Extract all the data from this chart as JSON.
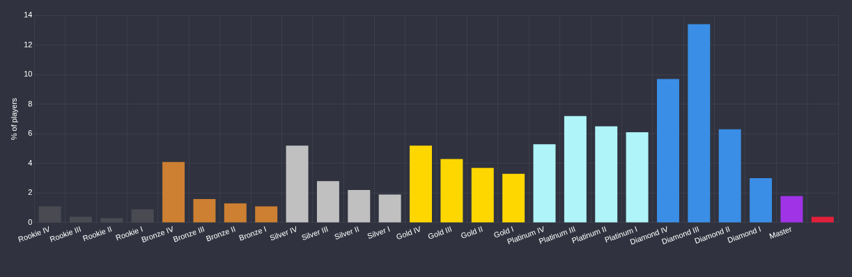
{
  "chart_data": {
    "type": "bar",
    "ylabel": "% of players",
    "categories": [
      "Rookie IV",
      "Rookie III",
      "Rookie II",
      "Rookie I",
      "Bronze IV",
      "Bronze III",
      "Bronze II",
      "Bronze I",
      "Silver IV",
      "Silver III",
      "Silver II",
      "Silver I",
      "Gold IV",
      "Gold III",
      "Gold II",
      "Gold I",
      "Platinum IV",
      "Platinum III",
      "Platinum II",
      "Platinum I",
      "Diamond IV",
      "Diamond III",
      "Diamond II",
      "Diamond I",
      "Master",
      null
    ],
    "values": [
      1.1,
      0.4,
      0.3,
      0.9,
      4.1,
      1.6,
      1.3,
      1.1,
      5.2,
      2.8,
      2.2,
      1.9,
      5.2,
      4.3,
      3.7,
      3.3,
      5.3,
      7.2,
      6.5,
      6.1,
      9.7,
      13.4,
      6.3,
      3.0,
      1.8,
      0.4
    ],
    "colors": [
      "#4a4a52",
      "#4a4a52",
      "#4a4a52",
      "#4a4a52",
      "#cd7f32",
      "#cd7f32",
      "#cd7f32",
      "#cd7f32",
      "#c0c0c0",
      "#c0c0c0",
      "#c0c0c0",
      "#c0c0c0",
      "#ffd700",
      "#ffd700",
      "#ffd700",
      "#ffd700",
      "#aff4f8",
      "#aff4f8",
      "#aff4f8",
      "#aff4f8",
      "#3a8ee6",
      "#3a8ee6",
      "#3a8ee6",
      "#3a8ee6",
      "#a033e6",
      "#e0203a"
    ],
    "ylim": [
      0,
      14
    ],
    "yticks": [
      0,
      2,
      4,
      6,
      8,
      10,
      12,
      14
    ],
    "grid": true,
    "legend": false
  }
}
